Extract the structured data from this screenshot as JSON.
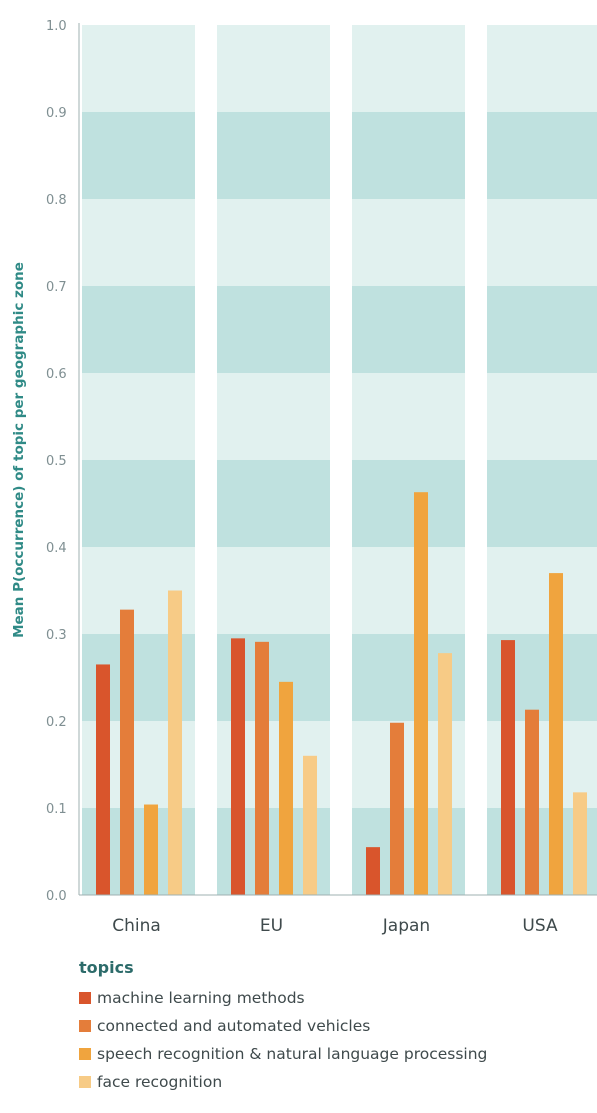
{
  "colors": {
    "band_dark": "#bfe1df",
    "band_light": "#e1f1ef",
    "axis": "#9fb0b2"
  },
  "chart_data": {
    "type": "bar",
    "title": "",
    "xlabel": "",
    "ylabel": "Mean P(occurrence) of topic per geographic zone",
    "ylim": [
      0,
      1.0
    ],
    "yticks": [
      "0.0",
      "0.1",
      "0.2",
      "0.3",
      "0.4",
      "0.5",
      "0.6",
      "0.7",
      "0.8",
      "0.9",
      "1.0"
    ],
    "categories": [
      "China",
      "EU",
      "Japan",
      "USA"
    ],
    "legend_title": "topics",
    "legend_position": "bottom",
    "grid": false,
    "series": [
      {
        "name": "machine learning methods",
        "color": "#d9552c",
        "values": [
          0.265,
          0.295,
          0.055,
          0.293
        ]
      },
      {
        "name": "connected and automated vehicles",
        "color": "#e47d3a",
        "values": [
          0.328,
          0.291,
          0.198,
          0.213
        ]
      },
      {
        "name": "speech recognition & natural language processing",
        "color": "#f0a43e",
        "values": [
          0.104,
          0.245,
          0.463,
          0.37
        ]
      },
      {
        "name": "face recognition",
        "color": "#f7cb86",
        "values": [
          0.35,
          0.16,
          0.278,
          0.118
        ]
      }
    ]
  }
}
